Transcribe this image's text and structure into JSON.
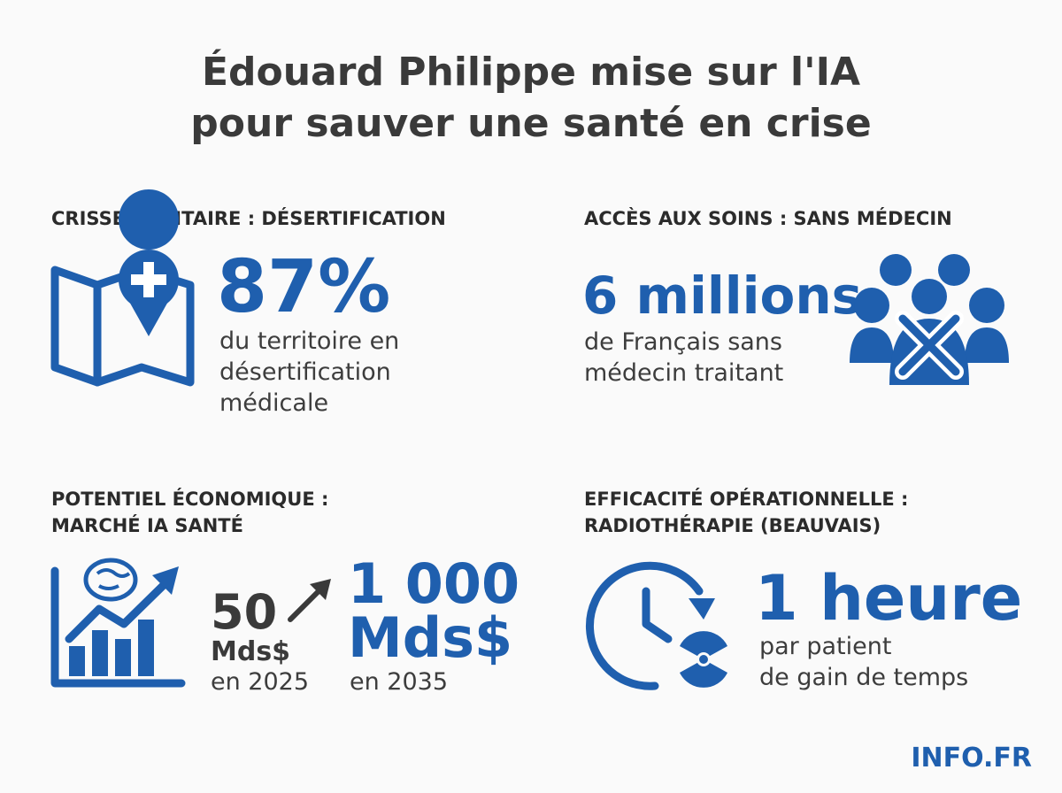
{
  "header": {
    "title_lines": [
      "Édouard Philippe mise sur l'IA",
      "pour sauver une santé en crise"
    ]
  },
  "panels": [
    {
      "heading_lines": [
        "CRISSE SANITAIRE : DÉSERTIFICATION"
      ],
      "stat": "87%",
      "description_lines": [
        "du territoire en",
        "désertification",
        "médicale"
      ]
    },
    {
      "heading_lines": [
        "ACCÈS AUX SOINS : SANS MÉDECIN"
      ],
      "stat": "6 millions",
      "description_lines": [
        "de Français sans",
        "médecin traitant"
      ]
    },
    {
      "heading_lines": [
        "POTENTIEL ÉCONOMIQUE :",
        "MARCHÉ IA SANTÉ"
      ],
      "from": {
        "value": "50",
        "unit": "Mds$",
        "year": "en 2025"
      },
      "to": {
        "value": "1 000",
        "unit": "Mds$",
        "year": "en 2035"
      }
    },
    {
      "heading_lines": [
        "EFFICACITÉ OPÉRATIONNELLE :",
        "RADIOTHÉRAPIE (BEAUVAIS)"
      ],
      "stat": "1 heure",
      "description_lines": [
        "par patient",
        "de gain de temps"
      ]
    }
  ],
  "footer": {
    "brand": "INFO.FR"
  }
}
